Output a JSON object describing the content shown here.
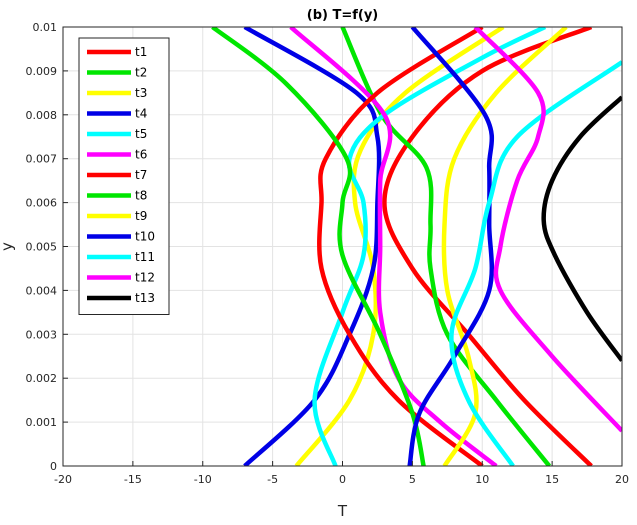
{
  "chart_data": {
    "type": "line",
    "title": "(b) T=f(y)",
    "xlabel": "T",
    "ylabel": "y",
    "xlim": [
      -20,
      20
    ],
    "ylim": [
      0,
      0.01
    ],
    "xticks": [
      "-20",
      "-15",
      "-10",
      "-5",
      "0",
      "5",
      "10",
      "15",
      "20"
    ],
    "yticks": [
      "0",
      "0.001",
      "0.002",
      "0.003",
      "0.004",
      "0.005",
      "0.006",
      "0.007",
      "0.008",
      "0.009",
      "0.01"
    ],
    "grid": true,
    "legend_position": "top-left",
    "series": [
      {
        "name": "t1",
        "color": "#ff0000",
        "points": [
          [
            17.8,
            0
          ],
          [
            13,
            0.0015
          ],
          [
            9,
            0.003
          ],
          [
            5,
            0.0045
          ],
          [
            3,
            0.006
          ],
          [
            5,
            0.0075
          ],
          [
            10,
            0.009
          ],
          [
            17.8,
            0.01
          ]
        ]
      },
      {
        "name": "t2",
        "color": "#00e600",
        "points": [
          [
            14.8,
            0
          ],
          [
            11,
            0.0015
          ],
          [
            7.5,
            0.003
          ],
          [
            6.3,
            0.0045
          ],
          [
            6.3,
            0.0055
          ],
          [
            6,
            0.0068
          ],
          [
            2.8,
            0.008
          ],
          [
            0,
            0.01
          ]
        ]
      },
      {
        "name": "t3",
        "color": "#ffff00",
        "points": [
          [
            -3.3,
            0
          ],
          [
            0.5,
            0.0015
          ],
          [
            2.2,
            0.003
          ],
          [
            2.2,
            0.0045
          ],
          [
            0.9,
            0.006
          ],
          [
            1.3,
            0.0072
          ],
          [
            4.5,
            0.0085
          ],
          [
            11.5,
            0.01
          ]
        ]
      },
      {
        "name": "t4",
        "color": "#0000e6",
        "points": [
          [
            -7,
            0
          ],
          [
            -2,
            0.0015
          ],
          [
            0.5,
            0.003
          ],
          [
            2.2,
            0.0045
          ],
          [
            2.5,
            0.006
          ],
          [
            2.5,
            0.0075
          ],
          [
            1,
            0.0085
          ],
          [
            -7,
            0.01
          ]
        ]
      },
      {
        "name": "t5",
        "color": "#00ffff",
        "points": [
          [
            -0.5,
            0
          ],
          [
            -2,
            0.0015
          ],
          [
            0,
            0.0035
          ],
          [
            1.5,
            0.0048
          ],
          [
            1.5,
            0.006
          ],
          [
            0.5,
            0.007
          ],
          [
            3,
            0.008
          ],
          [
            10,
            0.0093
          ],
          [
            14.5,
            0.01
          ]
        ]
      },
      {
        "name": "t6",
        "color": "#ff00ff",
        "points": [
          [
            11,
            0
          ],
          [
            7,
            0.001
          ],
          [
            4,
            0.002
          ],
          [
            2.7,
            0.0035
          ],
          [
            2.7,
            0.005
          ],
          [
            2.7,
            0.0065
          ],
          [
            3,
            0.008
          ],
          [
            -3.7,
            0.01
          ]
        ]
      },
      {
        "name": "t7",
        "color": "#ff0000",
        "points": [
          [
            10,
            0
          ],
          [
            4,
            0.0015
          ],
          [
            0.5,
            0.003
          ],
          [
            -1.5,
            0.0045
          ],
          [
            -1.5,
            0.006
          ],
          [
            -1.2,
            0.007
          ],
          [
            2.5,
            0.0085
          ],
          [
            10,
            0.01
          ]
        ]
      },
      {
        "name": "t8",
        "color": "#00e600",
        "points": [
          [
            5.8,
            0
          ],
          [
            5,
            0.0012
          ],
          [
            2.7,
            0.003
          ],
          [
            0,
            0.0048
          ],
          [
            0,
            0.006
          ],
          [
            0.3,
            0.007
          ],
          [
            -4,
            0.0087
          ],
          [
            -9.3,
            0.01
          ]
        ]
      },
      {
        "name": "t9",
        "color": "#ffff00",
        "points": [
          [
            7.3,
            0
          ],
          [
            9.5,
            0.0012
          ],
          [
            9,
            0.0025
          ],
          [
            7.5,
            0.004
          ],
          [
            7.3,
            0.0055
          ],
          [
            8,
            0.007
          ],
          [
            11,
            0.0085
          ],
          [
            16,
            0.01
          ]
        ]
      },
      {
        "name": "t10",
        "color": "#0000e6",
        "points": [
          [
            4.8,
            0
          ],
          [
            5.5,
            0.0012
          ],
          [
            8,
            0.0025
          ],
          [
            10.5,
            0.004
          ],
          [
            10.5,
            0.0055
          ],
          [
            10.5,
            0.0068
          ],
          [
            10.2,
            0.008
          ],
          [
            5,
            0.01
          ]
        ]
      },
      {
        "name": "t11",
        "color": "#00ffff",
        "points": [
          [
            12.2,
            0
          ],
          [
            9,
            0.0015
          ],
          [
            7.8,
            0.003
          ],
          [
            9.5,
            0.0045
          ],
          [
            10.5,
            0.006
          ],
          [
            12.5,
            0.0075
          ],
          [
            20,
            0.0092
          ]
        ]
      },
      {
        "name": "t12",
        "color": "#ff00ff",
        "points": [
          [
            20,
            0.0008
          ],
          [
            15,
            0.0025
          ],
          [
            11.3,
            0.004
          ],
          [
            11.3,
            0.005
          ],
          [
            12.5,
            0.0065
          ],
          [
            14,
            0.0075
          ],
          [
            14,
            0.0085
          ],
          [
            9.5,
            0.01
          ]
        ]
      },
      {
        "name": "t13",
        "color": "#000000",
        "points": [
          [
            20,
            0.0024
          ],
          [
            17.5,
            0.0035
          ],
          [
            15.2,
            0.0048
          ],
          [
            14.4,
            0.0056
          ],
          [
            15,
            0.0065
          ],
          [
            17,
            0.0075
          ],
          [
            20,
            0.0084
          ]
        ]
      }
    ]
  }
}
